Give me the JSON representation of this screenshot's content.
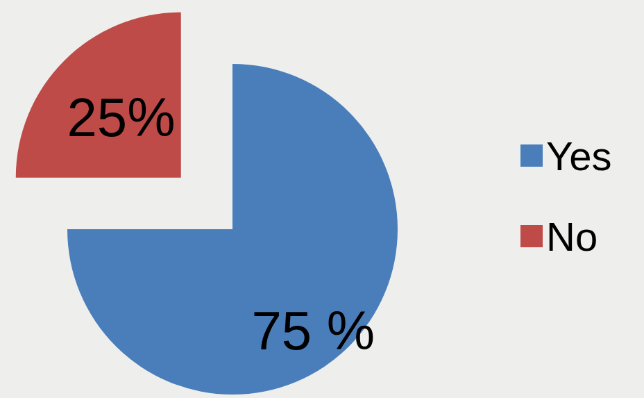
{
  "chart_data": {
    "type": "pie",
    "categories": [
      "Yes",
      "No"
    ],
    "values": [
      75,
      25
    ],
    "value_labels": [
      "75 %",
      "25%"
    ],
    "colors": [
      "#4a7ebb",
      "#be4b48"
    ],
    "data_labels": true,
    "legend": "right"
  }
}
